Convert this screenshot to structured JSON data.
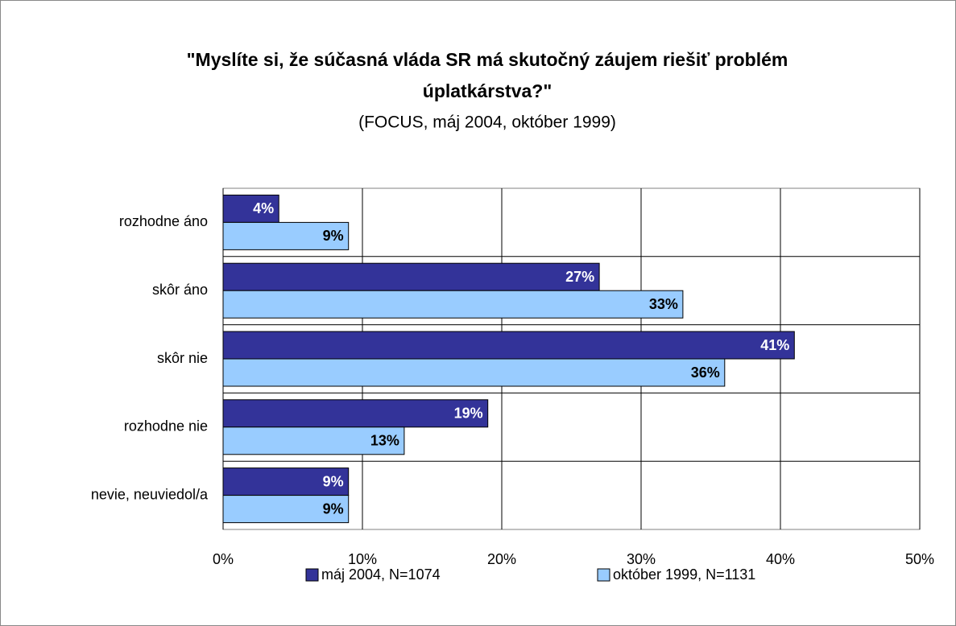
{
  "chart_data": {
    "type": "hbar",
    "title": [
      "\"Myslíte si, že súčasná vláda SR má skutočný záujem riešiť problém",
      "úplatkárstva?\""
    ],
    "subtitle": "(FOCUS, máj 2004, október 1999)",
    "categories": [
      "rozhodne áno",
      "skôr áno",
      "skôr nie",
      "rozhodne nie",
      "nevie, neuviedol/a"
    ],
    "series": [
      {
        "name": "máj 2004, N=1074",
        "color": "#333399",
        "values": [
          4,
          27,
          41,
          19,
          9
        ],
        "value_labels": [
          "4%",
          "27%",
          "41%",
          "19%",
          "9%"
        ]
      },
      {
        "name": "október 1999, N=1131",
        "color": "#99ccff",
        "values": [
          9,
          33,
          36,
          13,
          9
        ],
        "value_labels": [
          "9%",
          "33%",
          "36%",
          "13%",
          "9%"
        ]
      }
    ],
    "xlim": [
      0,
      50
    ],
    "xticks": [
      {
        "value": 0,
        "label": "0%"
      },
      {
        "value": 10,
        "label": "10%"
      },
      {
        "value": 20,
        "label": "20%"
      },
      {
        "value": 30,
        "label": "30%"
      },
      {
        "value": 40,
        "label": "40%"
      },
      {
        "value": 50,
        "label": "50%"
      }
    ],
    "grid": true
  }
}
